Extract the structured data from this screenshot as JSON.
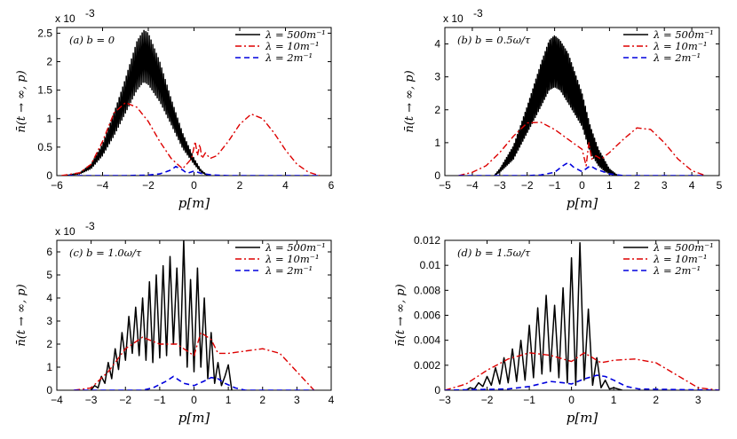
{
  "chart_data": [
    {
      "id": "a",
      "type": "line",
      "annotation": "(a) b = 0",
      "xlabel": "p[m]",
      "ylabel": "n̄(t → ∞, p)",
      "multiplier": "x 10",
      "multiplier_exp": "-3",
      "xlim": [
        -6,
        6
      ],
      "ylim": [
        0,
        2.6
      ],
      "xticks": [
        -6,
        -4,
        -2,
        0,
        2,
        4,
        6
      ],
      "xtick_labels": [
        "−6",
        "−4",
        "−2",
        "0",
        "2",
        "4",
        "6"
      ],
      "yticks": [
        0,
        0.5,
        1,
        1.5,
        2,
        2.5
      ],
      "ytick_labels": [
        "0",
        "0.5",
        "1",
        "1.5",
        "2",
        "2.5"
      ],
      "legend": [
        "λ = 500m⁻¹",
        "λ = 10m⁻¹",
        "λ = 2m⁻¹"
      ],
      "series": [
        {
          "name": "λ = 500m⁻¹",
          "style": "solid",
          "color": "#000000",
          "x": [
            -5.6,
            -5,
            -4.5,
            -4,
            -3.5,
            -3,
            -2.5,
            -2.2,
            -2,
            -1.5,
            -1,
            -0.5,
            0,
            0.3,
            0.6
          ],
          "upper": [
            0,
            0.05,
            0.2,
            0.55,
            1.1,
            1.7,
            2.35,
            2.55,
            2.5,
            2.0,
            1.35,
            0.75,
            0.3,
            0.1,
            0
          ],
          "lower": [
            0,
            0.03,
            0.12,
            0.35,
            0.7,
            1.1,
            1.5,
            1.65,
            1.6,
            1.3,
            0.9,
            0.48,
            0.2,
            0.06,
            0
          ]
        },
        {
          "name": "λ = 10m⁻¹",
          "style": "dashdot",
          "color": "#dd0000",
          "x": [
            -5.8,
            -5,
            -4.5,
            -4,
            -3.5,
            -3,
            -2.5,
            -2,
            -1.5,
            -1,
            -0.5,
            -0.1,
            0.05,
            0.15,
            0.25,
            0.35,
            0.5,
            0.7,
            1,
            1.5,
            2,
            2.5,
            3,
            3.5,
            4,
            4.5,
            5,
            5.5
          ],
          "y": [
            0,
            0.05,
            0.2,
            0.6,
            1.1,
            1.28,
            1.2,
            0.95,
            0.6,
            0.3,
            0.12,
            0.3,
            0.6,
            0.35,
            0.55,
            0.3,
            0.4,
            0.3,
            0.35,
            0.6,
            0.9,
            1.08,
            1.0,
            0.75,
            0.45,
            0.2,
            0.06,
            0
          ]
        },
        {
          "name": "λ = 2m⁻¹",
          "style": "dashed",
          "color": "#0000dd",
          "x": [
            -5.5,
            -3,
            -2,
            -1.5,
            -1,
            -0.8,
            -0.5,
            -0.3,
            0,
            0.3,
            0.8,
            1.5,
            5.5
          ],
          "y": [
            0,
            0,
            0.01,
            0.03,
            0.1,
            0.16,
            0.1,
            0.04,
            0.08,
            0.04,
            0.01,
            0,
            0
          ]
        }
      ]
    },
    {
      "id": "b",
      "type": "line",
      "annotation": "(b) b = 0.5ω/τ",
      "xlabel": "p[m]",
      "ylabel": "n̄(t → ∞, p)",
      "multiplier": "x 10",
      "multiplier_exp": "-3",
      "xlim": [
        -5,
        5
      ],
      "ylim": [
        0,
        4.5
      ],
      "xticks": [
        -5,
        -4,
        -3,
        -2,
        -1,
        0,
        1,
        2,
        3,
        4,
        5
      ],
      "xtick_labels": [
        "−5",
        "−4",
        "−3",
        "−2",
        "−1",
        "0",
        "1",
        "2",
        "3",
        "4",
        "5"
      ],
      "yticks": [
        0,
        1,
        2,
        3,
        4
      ],
      "ytick_labels": [
        "0",
        "1",
        "2",
        "3",
        "4"
      ],
      "legend": [
        "λ = 500m⁻¹",
        "λ = 10m⁻¹",
        "λ = 2m⁻¹"
      ],
      "series": [
        {
          "name": "λ = 500m⁻¹",
          "style": "solid",
          "color": "#000000",
          "x": [
            -3.2,
            -3,
            -2.5,
            -2,
            -1.5,
            -1.2,
            -1,
            -0.8,
            -0.5,
            0,
            0.3,
            0.6,
            0.8,
            1,
            1.3
          ],
          "upper": [
            0,
            0.2,
            0.9,
            2.1,
            3.4,
            4.1,
            4.25,
            4.1,
            3.7,
            2.5,
            1.5,
            0.8,
            0.5,
            0.2,
            0
          ],
          "lower": [
            0,
            0.1,
            0.5,
            1.3,
            2.1,
            2.6,
            2.7,
            2.6,
            2.2,
            1.5,
            0.7,
            0.3,
            0.15,
            0.05,
            0
          ]
        },
        {
          "name": "λ = 10m⁻¹",
          "style": "dashdot",
          "color": "#dd0000",
          "x": [
            -4.5,
            -4,
            -3.5,
            -3,
            -2.5,
            -2,
            -1.5,
            -1,
            -0.5,
            0,
            0.15,
            0.25,
            0.35,
            0.5,
            0.7,
            1,
            1.5,
            2,
            2.5,
            3,
            3.5,
            4,
            4.5
          ],
          "y": [
            0,
            0.1,
            0.3,
            0.7,
            1.2,
            1.6,
            1.62,
            1.4,
            1.1,
            0.8,
            0.3,
            1.0,
            0.5,
            0.6,
            0.5,
            0.7,
            1.1,
            1.45,
            1.4,
            1.0,
            0.5,
            0.15,
            0
          ]
        },
        {
          "name": "λ = 2m⁻¹",
          "style": "dashed",
          "color": "#0000dd",
          "x": [
            -4.5,
            -2,
            -1.5,
            -1,
            -0.7,
            -0.5,
            -0.3,
            0,
            0.3,
            0.5,
            1,
            1.5,
            4.5
          ],
          "y": [
            0,
            0,
            0.02,
            0.1,
            0.3,
            0.4,
            0.25,
            0.12,
            0.3,
            0.2,
            0.05,
            0,
            0
          ]
        }
      ]
    },
    {
      "id": "c",
      "type": "line",
      "annotation": "(c) b = 1.0ω/τ",
      "xlabel": "p[m]",
      "ylabel": "n̄(t → ∞, p)",
      "multiplier": "x 10",
      "multiplier_exp": "-3",
      "xlim": [
        -4,
        4
      ],
      "ylim": [
        0,
        6.5
      ],
      "xticks": [
        -4,
        -3,
        -2,
        -1,
        0,
        1,
        2,
        3,
        4
      ],
      "xtick_labels": [
        "−4",
        "−3",
        "−2",
        "−1",
        "0",
        "1",
        "2",
        "3",
        "4"
      ],
      "yticks": [
        0,
        1,
        2,
        3,
        4,
        5,
        6
      ],
      "ytick_labels": [
        "0",
        "1",
        "2",
        "3",
        "4",
        "5",
        "6"
      ],
      "legend": [
        "λ = 500m⁻¹",
        "λ = 10m⁻¹",
        "λ = 2m⁻¹"
      ],
      "series": [
        {
          "name": "λ = 500m⁻¹",
          "style": "solid",
          "color": "#000000",
          "x": [
            -3,
            -2.9,
            -2.8,
            -2.7,
            -2.6,
            -2.5,
            -2.4,
            -2.3,
            -2.2,
            -2.1,
            -2,
            -1.9,
            -1.8,
            -1.7,
            -1.6,
            -1.5,
            -1.4,
            -1.3,
            -1.2,
            -1.1,
            -1,
            -0.9,
            -0.8,
            -0.7,
            -0.6,
            -0.5,
            -0.4,
            -0.3,
            -0.2,
            -0.1,
            0,
            0.1,
            0.2,
            0.3,
            0.4,
            0.5,
            0.6,
            0.7,
            0.8,
            0.9,
            1,
            1.1
          ],
          "y": [
            0,
            0.2,
            0.1,
            0.6,
            0.3,
            1.2,
            0.5,
            1.8,
            0.9,
            2.5,
            1.3,
            3.2,
            1.6,
            3.6,
            1.5,
            4.0,
            1.3,
            4.7,
            1.2,
            5.0,
            1.4,
            5.4,
            1.5,
            5.8,
            2.0,
            5.3,
            1.5,
            6.5,
            1.0,
            4.8,
            0.8,
            5.3,
            1.0,
            4.0,
            0.5,
            2.5,
            0.3,
            1.2,
            0.2,
            0.6,
            1.1,
            0
          ]
        },
        {
          "name": "λ = 10m⁻¹",
          "style": "dashdot",
          "color": "#dd0000",
          "x": [
            -3.5,
            -3,
            -2.5,
            -2,
            -1.5,
            -1,
            -0.5,
            0,
            0.2,
            0.5,
            0.7,
            1,
            1.5,
            2,
            2.5,
            3,
            3.5
          ],
          "y": [
            0,
            0.1,
            0.8,
            1.8,
            2.3,
            2.0,
            2.0,
            1.5,
            2.5,
            2.2,
            1.6,
            1.6,
            1.7,
            1.8,
            1.6,
            0.8,
            0
          ]
        },
        {
          "name": "λ = 2m⁻¹",
          "style": "dashed",
          "color": "#0000dd",
          "x": [
            -3.5,
            -1.5,
            -1.2,
            -0.8,
            -0.6,
            -0.3,
            0,
            0.3,
            0.5,
            0.7,
            0.9,
            1.2,
            1.5,
            3.5
          ],
          "y": [
            0,
            0,
            0.1,
            0.4,
            0.6,
            0.3,
            0.2,
            0.4,
            0.55,
            0.5,
            0.3,
            0.1,
            0,
            0
          ]
        }
      ]
    },
    {
      "id": "d",
      "type": "line",
      "annotation": "(d) b = 1.5ω/τ",
      "xlabel": "p[m]",
      "ylabel": "n̄(t → ∞, p)",
      "xlim": [
        -3,
        3.5
      ],
      "ylim": [
        0,
        0.012
      ],
      "xticks": [
        -3,
        -2,
        -1,
        0,
        1,
        2,
        3
      ],
      "xtick_labels": [
        "−3",
        "−2",
        "−1",
        "0",
        "1",
        "2",
        "3"
      ],
      "yticks": [
        0,
        0.002,
        0.004,
        0.006,
        0.008,
        0.01,
        0.012
      ],
      "ytick_labels": [
        "0",
        "0.002",
        "0.004",
        "0.006",
        "0.008",
        "0.01",
        "0.012"
      ],
      "legend": [
        "λ = 500m⁻¹",
        "λ = 10m⁻¹",
        "λ = 2m⁻¹"
      ],
      "series": [
        {
          "name": "λ = 500m⁻¹",
          "style": "solid",
          "color": "#000000",
          "x": [
            -2.5,
            -2.4,
            -2.3,
            -2.2,
            -2.1,
            -2,
            -1.9,
            -1.8,
            -1.7,
            -1.6,
            -1.5,
            -1.4,
            -1.3,
            -1.2,
            -1.1,
            -1,
            -0.9,
            -0.8,
            -0.7,
            -0.6,
            -0.5,
            -0.4,
            -0.3,
            -0.2,
            -0.1,
            0,
            0.1,
            0.2,
            0.3,
            0.4,
            0.5,
            0.6,
            0.7,
            0.8,
            0.9,
            1,
            1.2
          ],
          "y": [
            0,
            0.0002,
            0.0001,
            0.0006,
            0.0003,
            0.0011,
            0.0004,
            0.0018,
            0.0005,
            0.0026,
            0.0006,
            0.0033,
            0.0007,
            0.004,
            0.0008,
            0.0052,
            0.001,
            0.0066,
            0.0013,
            0.0076,
            0.0015,
            0.0068,
            0.001,
            0.0082,
            0.0006,
            0.0106,
            0.0004,
            0.0118,
            0.0008,
            0.0065,
            0.0004,
            0.0026,
            0.0002,
            0.0008,
            0.0001,
            0.0002,
            0
          ]
        },
        {
          "name": "λ = 10m⁻¹",
          "style": "dashdot",
          "color": "#dd0000",
          "x": [
            -3,
            -2.5,
            -2,
            -1.5,
            -1,
            -0.5,
            0,
            0.3,
            0.5,
            0.7,
            1,
            1.5,
            2,
            2.5,
            3,
            3.5
          ],
          "y": [
            0,
            0.0005,
            0.0016,
            0.0025,
            0.003,
            0.0028,
            0.0023,
            0.003,
            0.0026,
            0.0022,
            0.0024,
            0.0025,
            0.0022,
            0.0012,
            0.0002,
            0
          ]
        },
        {
          "name": "λ = 2m⁻¹",
          "style": "dashed",
          "color": "#0000dd",
          "x": [
            -3,
            -1.5,
            -1,
            -0.5,
            -0.2,
            0,
            0.3,
            0.6,
            0.8,
            1,
            1.3,
            1.6,
            3.5
          ],
          "y": [
            0,
            0.0001,
            0.0003,
            0.0007,
            0.0006,
            0.0005,
            0.0009,
            0.0012,
            0.0011,
            0.0008,
            0.0003,
            0.0001,
            0
          ]
        }
      ]
    }
  ]
}
